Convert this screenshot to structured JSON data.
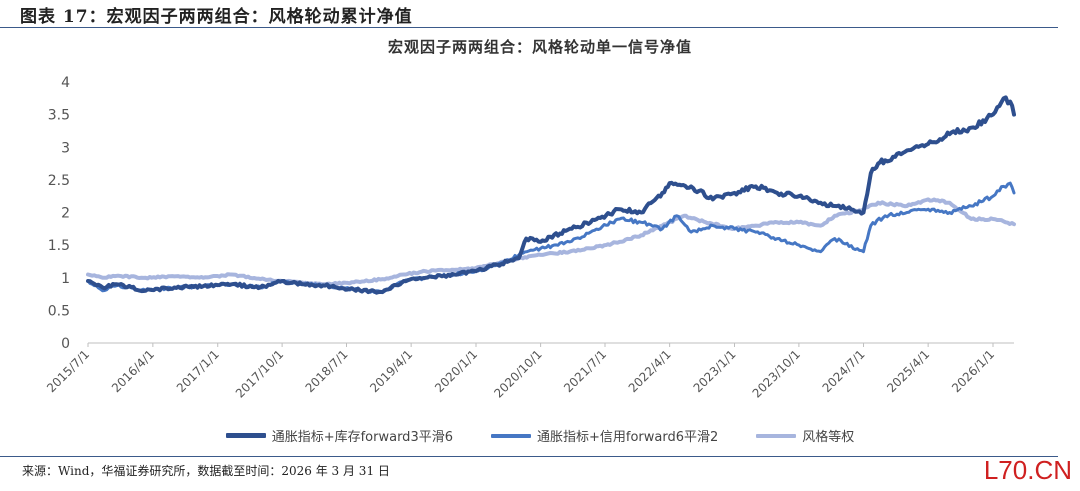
{
  "figure_title": "图表 17：宏观因子两两组合：风格轮动累计净值",
  "source_note": "来源：Wind，华福证券研究所，数据截至时间：2026 年 3 月 31 日",
  "watermark": "L70.CN",
  "colors": {
    "series1": "#2e4f8e",
    "series2": "#4677c4",
    "series3": "#a7b5de",
    "rule": "#3b5a8a",
    "watermark": "#cf2020"
  },
  "chart_data": {
    "type": "line",
    "title": "宏观因子两两组合：风格轮动单一信号净值",
    "xlabel": "",
    "ylabel": "",
    "ylim": [
      0,
      4
    ],
    "yticks": [
      "0",
      "0.5",
      "1",
      "1.5",
      "2",
      "2.5",
      "3",
      "3.5",
      "4"
    ],
    "xticks": [
      "2015/7/1",
      "2016/4/1",
      "2017/1/1",
      "2017/10/1",
      "2018/7/1",
      "2019/4/1",
      "2020/1/1",
      "2020/10/1",
      "2021/7/1",
      "2022/4/1",
      "2023/1/1",
      "2023/10/1",
      "2024/7/1",
      "2025/4/1",
      "2026/1/1"
    ],
    "xrange": [
      "2015/7/1",
      "2026/3/31"
    ],
    "grid": false,
    "legend_position": "bottom",
    "series": [
      {
        "name": "通胀指标+库存forward3平滑6",
        "x": [
          "2015/7/1",
          "2015/9/1",
          "2015/11/1",
          "2016/3/1",
          "2016/7/1",
          "2016/11/1",
          "2017/3/1",
          "2017/7/1",
          "2017/10/1",
          "2018/1/1",
          "2018/4/1",
          "2018/8/1",
          "2018/12/1",
          "2019/3/1",
          "2019/6/1",
          "2019/10/1",
          "2020/1/1",
          "2020/4/1",
          "2020/7/1",
          "2020/8/1",
          "2020/10/1",
          "2021/2/1",
          "2021/5/1",
          "2021/9/1",
          "2021/12/1",
          "2022/3/1",
          "2022/4/1",
          "2022/7/1",
          "2022/10/1",
          "2023/1/1",
          "2023/4/1",
          "2023/7/1",
          "2023/10/1",
          "2024/1/1",
          "2024/3/1",
          "2024/7/1",
          "2024/8/1",
          "2024/9/1",
          "2024/10/1",
          "2025/1/1",
          "2025/4/1",
          "2025/7/1",
          "2025/10/1",
          "2026/1/1",
          "2026/2/15",
          "2026/3/15",
          "2026/3/31"
        ],
        "values": [
          0.95,
          0.85,
          0.9,
          0.8,
          0.85,
          0.87,
          0.9,
          0.85,
          0.95,
          0.9,
          0.88,
          0.82,
          0.78,
          0.95,
          1.0,
          1.05,
          1.1,
          1.2,
          1.3,
          1.6,
          1.55,
          1.75,
          1.85,
          2.05,
          2.0,
          2.3,
          2.45,
          2.4,
          2.2,
          2.3,
          2.4,
          2.3,
          2.25,
          2.15,
          2.1,
          2.0,
          2.6,
          2.75,
          2.8,
          2.95,
          3.05,
          3.2,
          3.3,
          3.5,
          3.75,
          3.7,
          3.5
        ]
      },
      {
        "name": "通胀指标+信用forward6平滑2",
        "x": [
          "2015/7/1",
          "2015/9/1",
          "2015/11/1",
          "2016/3/1",
          "2016/7/1",
          "2016/11/1",
          "2017/3/1",
          "2017/7/1",
          "2017/10/1",
          "2018/1/1",
          "2018/4/1",
          "2018/8/1",
          "2018/12/1",
          "2019/3/1",
          "2019/6/1",
          "2019/10/1",
          "2020/1/1",
          "2020/4/1",
          "2020/7/1",
          "2020/10/1",
          "2021/2/1",
          "2021/5/1",
          "2021/9/1",
          "2021/12/1",
          "2022/3/1",
          "2022/5/1",
          "2022/7/1",
          "2022/10/1",
          "2023/1/1",
          "2023/4/1",
          "2023/7/1",
          "2023/10/1",
          "2024/1/1",
          "2024/3/1",
          "2024/7/1",
          "2024/8/1",
          "2024/10/1",
          "2025/1/1",
          "2025/4/1",
          "2025/7/1",
          "2025/10/1",
          "2026/1/1",
          "2026/2/15",
          "2026/3/15",
          "2026/3/31"
        ],
        "values": [
          0.95,
          0.8,
          0.88,
          0.8,
          0.85,
          0.87,
          0.9,
          0.85,
          0.95,
          0.9,
          0.88,
          0.82,
          0.78,
          0.95,
          1.0,
          1.05,
          1.1,
          1.2,
          1.35,
          1.45,
          1.55,
          1.7,
          1.9,
          1.85,
          1.75,
          1.95,
          1.7,
          1.8,
          1.75,
          1.7,
          1.6,
          1.5,
          1.4,
          1.6,
          1.4,
          1.8,
          1.95,
          2.0,
          2.05,
          2.0,
          2.1,
          2.25,
          2.4,
          2.45,
          2.3
        ]
      },
      {
        "name": "风格等权",
        "x": [
          "2015/7/1",
          "2015/9/1",
          "2015/11/1",
          "2016/3/1",
          "2016/7/1",
          "2016/11/1",
          "2017/3/1",
          "2017/7/1",
          "2017/10/1",
          "2018/1/1",
          "2018/4/1",
          "2018/8/1",
          "2018/12/1",
          "2019/3/1",
          "2019/6/1",
          "2019/10/1",
          "2020/1/1",
          "2020/4/1",
          "2020/7/1",
          "2020/10/1",
          "2021/2/1",
          "2021/5/1",
          "2021/9/1",
          "2021/12/1",
          "2022/3/1",
          "2022/6/1",
          "2022/9/1",
          "2023/1/1",
          "2023/4/1",
          "2023/7/1",
          "2023/10/1",
          "2024/1/1",
          "2024/3/1",
          "2024/7/1",
          "2024/9/1",
          "2025/1/1",
          "2025/4/1",
          "2025/7/1",
          "2025/10/1",
          "2026/1/1",
          "2026/3/31"
        ],
        "values": [
          1.05,
          1.0,
          1.03,
          1.0,
          1.02,
          1.0,
          1.05,
          0.98,
          0.95,
          0.92,
          0.9,
          0.93,
          0.98,
          1.05,
          1.1,
          1.12,
          1.15,
          1.22,
          1.3,
          1.35,
          1.4,
          1.45,
          1.55,
          1.65,
          1.8,
          1.95,
          1.85,
          1.75,
          1.8,
          1.85,
          1.85,
          1.8,
          1.95,
          2.05,
          2.15,
          2.1,
          2.2,
          2.15,
          1.9,
          1.9,
          1.82
        ]
      }
    ]
  }
}
